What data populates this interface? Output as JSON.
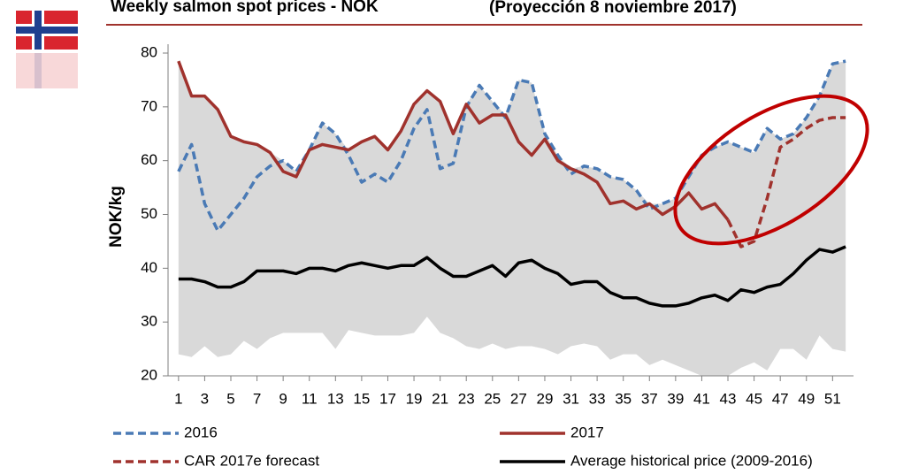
{
  "chart_data": {
    "type": "line",
    "title": "Weekly salmon spot prices - NOK",
    "subtitle": "(Proyección 8 noviembre 2017)",
    "y_label": "NOK/kg",
    "x": [
      1,
      2,
      3,
      4,
      5,
      6,
      7,
      8,
      9,
      10,
      11,
      12,
      13,
      14,
      15,
      16,
      17,
      18,
      19,
      20,
      21,
      22,
      23,
      24,
      25,
      26,
      27,
      28,
      29,
      30,
      31,
      32,
      33,
      34,
      35,
      36,
      37,
      38,
      39,
      40,
      41,
      42,
      43,
      44,
      45,
      46,
      47,
      48,
      49,
      50,
      51,
      52
    ],
    "xlim": [
      0.2,
      52.6
    ],
    "xticks": [
      1,
      3,
      5,
      7,
      9,
      11,
      13,
      15,
      17,
      19,
      21,
      23,
      25,
      27,
      29,
      31,
      33,
      35,
      37,
      39,
      41,
      43,
      45,
      47,
      49,
      51
    ],
    "ylim": [
      20,
      80
    ],
    "yticks": [
      20,
      30,
      40,
      50,
      60,
      70,
      80
    ],
    "band": {
      "color": "#d9d9d9",
      "low": [
        24,
        23.5,
        25.5,
        23.5,
        24,
        26.5,
        25,
        27,
        28,
        28,
        28,
        28,
        25,
        28.5,
        28,
        27.5,
        27.5,
        27.5,
        28,
        31,
        28,
        27,
        25.5,
        25,
        26,
        25,
        25.5,
        25.5,
        25,
        24,
        25.5,
        26,
        25.5,
        23,
        24,
        24,
        22,
        23,
        22,
        21,
        20,
        19,
        20,
        21.5,
        22.5,
        21,
        25,
        25,
        23,
        27.5,
        25,
        24.5
      ],
      "high": [
        78.5,
        72,
        72,
        69.5,
        64.5,
        63.5,
        63,
        61.5,
        60,
        58,
        62,
        67,
        65,
        62,
        63.5,
        64.5,
        62,
        65.5,
        70.5,
        73,
        71,
        65,
        70.5,
        74,
        71,
        68.5,
        75,
        74.5,
        65,
        61,
        58.5,
        59,
        58.5,
        57,
        56.5,
        54.5,
        52,
        52,
        53,
        57,
        61,
        62.5,
        63.5,
        62.5,
        61.5,
        66,
        64,
        65,
        68,
        72,
        78,
        78.5
      ]
    },
    "series": [
      {
        "name": "2016",
        "color": "#4a7ab5",
        "style": "dashed",
        "values": [
          58,
          63,
          52,
          47,
          50,
          53,
          57,
          59,
          60,
          58,
          62,
          67,
          65,
          61,
          56,
          57.5,
          56,
          60,
          66,
          69.5,
          58.5,
          59.5,
          70,
          74,
          71,
          68,
          75,
          74.5,
          65,
          61,
          57.5,
          59,
          58.5,
          57,
          56.5,
          54.5,
          51,
          52,
          53,
          57,
          61,
          62.5,
          63.5,
          62.5,
          61.5,
          66,
          64,
          65,
          68,
          72,
          78,
          78.5
        ]
      },
      {
        "name": "2017",
        "color": "#a0322d",
        "style": "solid",
        "values": [
          78.5,
          72,
          72,
          69.5,
          64.5,
          63.5,
          63,
          61.5,
          58,
          57,
          62,
          63,
          62.5,
          62,
          63.5,
          64.5,
          62,
          65.5,
          70.5,
          73,
          71,
          65,
          70.5,
          67,
          68.5,
          68.5,
          63.5,
          61,
          64,
          60,
          58.5,
          57.5,
          56,
          52,
          52.5,
          51,
          52,
          50,
          51.5,
          54,
          51,
          52,
          49,
          null,
          null,
          null,
          null,
          null,
          null,
          null,
          null,
          null
        ]
      },
      {
        "name": "CAR 2017e forecast",
        "color": "#a0322d",
        "style": "dashed",
        "values": [
          null,
          null,
          null,
          null,
          null,
          null,
          null,
          null,
          null,
          null,
          null,
          null,
          null,
          null,
          null,
          null,
          null,
          null,
          null,
          null,
          null,
          null,
          null,
          null,
          null,
          null,
          null,
          null,
          null,
          null,
          null,
          null,
          null,
          null,
          null,
          null,
          null,
          null,
          null,
          null,
          null,
          null,
          49,
          44,
          45,
          53,
          62.5,
          64,
          66,
          67.5,
          68,
          68
        ]
      },
      {
        "name": "Average historical price (2009-2016)",
        "color": "#000000",
        "style": "solid",
        "values": [
          38,
          38,
          37.5,
          36.5,
          36.5,
          37.5,
          39.5,
          39.5,
          39.5,
          39,
          40,
          40,
          39.5,
          40.5,
          41,
          40.5,
          40,
          40.5,
          40.5,
          42,
          40,
          38.5,
          38.5,
          39.5,
          40.5,
          38.5,
          41,
          41.5,
          40,
          39,
          37,
          37.5,
          37.5,
          35.5,
          34.5,
          34.5,
          33.5,
          33,
          33,
          33.5,
          34.5,
          35,
          34,
          36,
          35.5,
          36.5,
          37,
          39,
          41.5,
          43.5,
          43,
          44
        ]
      }
    ]
  }
}
